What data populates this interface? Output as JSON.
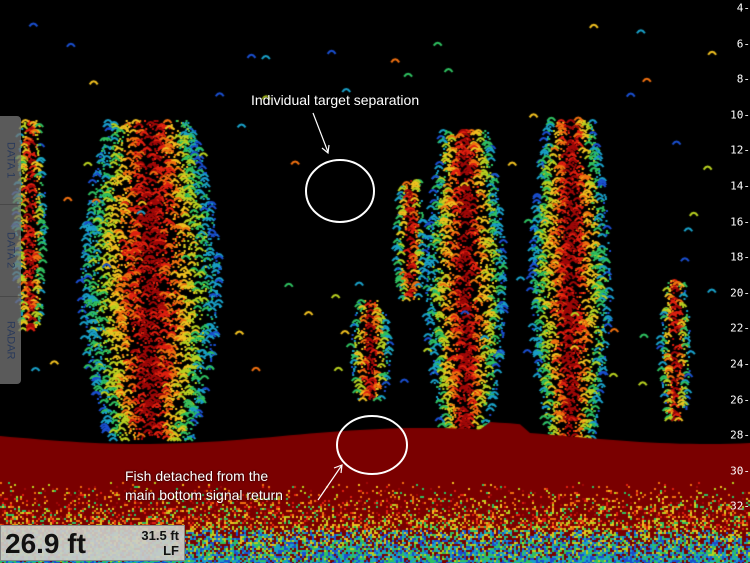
{
  "depth_scale": {
    "unit": "ft",
    "ticks": [
      "4",
      "6",
      "8",
      "10",
      "12",
      "14",
      "16",
      "18",
      "20",
      "22",
      "24",
      "26",
      "28",
      "30",
      "32"
    ]
  },
  "side_tabs": [
    {
      "label": "DATA 1"
    },
    {
      "label": "DATA 2"
    },
    {
      "label": "RADAR"
    }
  ],
  "annotations": {
    "top": "Individual target separation",
    "bottom_line1": "Fish detached from the",
    "bottom_line2": "main bottom signal return"
  },
  "readout": {
    "depth": "26.9 ft",
    "secondary_depth": "31.5 ft",
    "frequency": "LF"
  },
  "colors": {
    "bottom": "#7a0000",
    "background": "#000000",
    "annotation": "#ffffff"
  }
}
